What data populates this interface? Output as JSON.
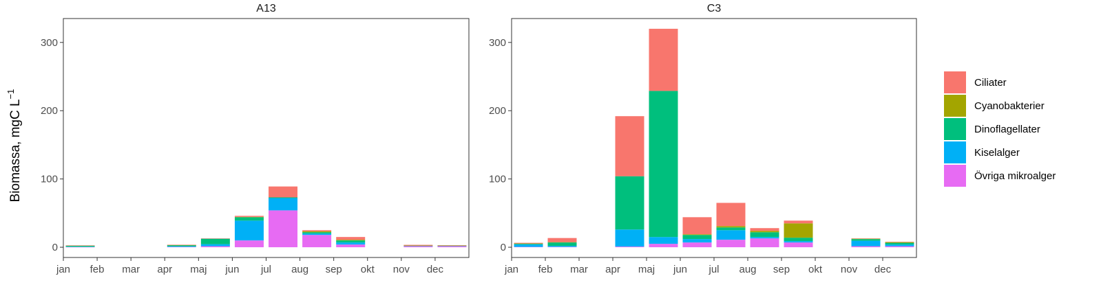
{
  "chart_data": {
    "type": "bar",
    "stacked": true,
    "ylabel": "Biomassa, mgC L",
    "ylabel_superscript": "−1",
    "ylim": [
      -15,
      335
    ],
    "yticks": [
      0,
      100,
      200,
      300
    ],
    "x_tick_labels": [
      "jan",
      "feb",
      "mar",
      "apr",
      "maj",
      "jun",
      "jul",
      "aug",
      "sep",
      "okt",
      "nov",
      "dec"
    ],
    "x_range": [
      1,
      13
    ],
    "grid": false,
    "legend_position": "right",
    "series_colors": {
      "Ciliater": "#F8766D",
      "Cyanobakterier": "#A3A500",
      "Dinoflagellater": "#00BF7D",
      "Kiselalger": "#00B0F6",
      "Övriga mikroalger": "#E76BF3"
    },
    "legend": [
      "Ciliater",
      "Cyanobakterier",
      "Dinoflagellater",
      "Kiselalger",
      "Övriga mikroalger"
    ],
    "stack_order": [
      "Övriga mikroalger",
      "Kiselalger",
      "Dinoflagellater",
      "Cyanobakterier",
      "Ciliater"
    ],
    "panels": [
      {
        "title": "A13",
        "bars": [
          {
            "x": 1.5,
            "values": {
              "Övriga mikroalger": 0.3,
              "Kiselalger": 0.5,
              "Dinoflagellater": 1.5,
              "Cyanobakterier": 0.2,
              "Ciliater": 0.2
            }
          },
          {
            "x": 4.5,
            "values": {
              "Övriga mikroalger": 0.5,
              "Kiselalger": 1.0,
              "Dinoflagellater": 1.5,
              "Cyanobakterier": 0.3,
              "Ciliater": 0.4
            }
          },
          {
            "x": 5.5,
            "values": {
              "Övriga mikroalger": 1.5,
              "Kiselalger": 3.0,
              "Dinoflagellater": 8.0,
              "Cyanobakterier": 0,
              "Ciliater": 0.5
            }
          },
          {
            "x": 6.5,
            "values": {
              "Övriga mikroalger": 10,
              "Kiselalger": 29,
              "Dinoflagellater": 5,
              "Cyanobakterier": 0.5,
              "Ciliater": 1.5
            }
          },
          {
            "x": 7.5,
            "values": {
              "Övriga mikroalger": 54,
              "Kiselalger": 18,
              "Dinoflagellater": 1,
              "Cyanobakterier": 0,
              "Ciliater": 16
            }
          },
          {
            "x": 8.5,
            "values": {
              "Övriga mikroalger": 18,
              "Kiselalger": 2,
              "Dinoflagellater": 2,
              "Cyanobakterier": 1.5,
              "Ciliater": 1.5
            }
          },
          {
            "x": 9.5,
            "values": {
              "Övriga mikroalger": 4,
              "Kiselalger": 3,
              "Dinoflagellater": 3,
              "Cyanobakterier": 1,
              "Ciliater": 4
            }
          },
          {
            "x": 11.5,
            "values": {
              "Övriga mikroalger": 1.5,
              "Kiselalger": 0.5,
              "Dinoflagellater": 0.3,
              "Cyanobakterier": 0.2,
              "Ciliater": 1.0
            }
          },
          {
            "x": 12.5,
            "values": {
              "Övriga mikroalger": 1.5,
              "Kiselalger": 0.5,
              "Dinoflagellater": 0.3,
              "Cyanobakterier": 0.2,
              "Ciliater": 0.5
            }
          }
        ]
      },
      {
        "title": "C3",
        "bars": [
          {
            "x": 1.5,
            "values": {
              "Övriga mikroalger": 0.5,
              "Kiselalger": 3.5,
              "Dinoflagellater": 1.0,
              "Cyanobakterier": 0.5,
              "Ciliater": 1.0
            }
          },
          {
            "x": 2.5,
            "values": {
              "Övriga mikroalger": 0.5,
              "Kiselalger": 1.5,
              "Dinoflagellater": 5.0,
              "Cyanobakterier": 0.5,
              "Ciliater": 6.0
            }
          },
          {
            "x": 4.5,
            "values": {
              "Övriga mikroalger": 1,
              "Kiselalger": 25,
              "Dinoflagellater": 78,
              "Cyanobakterier": 0,
              "Ciliater": 88
            }
          },
          {
            "x": 5.5,
            "values": {
              "Övriga mikroalger": 5,
              "Kiselalger": 10,
              "Dinoflagellater": 214,
              "Cyanobakterier": 0,
              "Ciliater": 91
            }
          },
          {
            "x": 6.5,
            "values": {
              "Övriga mikroalger": 7,
              "Kiselalger": 5,
              "Dinoflagellater": 6,
              "Cyanobakterier": 1,
              "Ciliater": 25
            }
          },
          {
            "x": 7.5,
            "values": {
              "Övriga mikroalger": 11,
              "Kiselalger": 14,
              "Dinoflagellater": 4,
              "Cyanobakterier": 2,
              "Ciliater": 34
            }
          },
          {
            "x": 8.5,
            "values": {
              "Övriga mikroalger": 13,
              "Kiselalger": 2,
              "Dinoflagellater": 7,
              "Cyanobakterier": 2,
              "Ciliater": 4
            }
          },
          {
            "x": 9.5,
            "values": {
              "Övriga mikroalger": 7,
              "Kiselalger": 2,
              "Dinoflagellater": 5,
              "Cyanobakterier": 21,
              "Ciliater": 4
            }
          },
          {
            "x": 11.5,
            "values": {
              "Övriga mikroalger": 1.5,
              "Kiselalger": 8,
              "Dinoflagellater": 2.5,
              "Cyanobakterier": 0.5,
              "Ciliater": 0.5
            }
          },
          {
            "x": 12.5,
            "values": {
              "Övriga mikroalger": 1.5,
              "Kiselalger": 2.5,
              "Dinoflagellater": 2.5,
              "Cyanobakterier": 1,
              "Ciliater": 0.5
            }
          }
        ]
      }
    ]
  }
}
